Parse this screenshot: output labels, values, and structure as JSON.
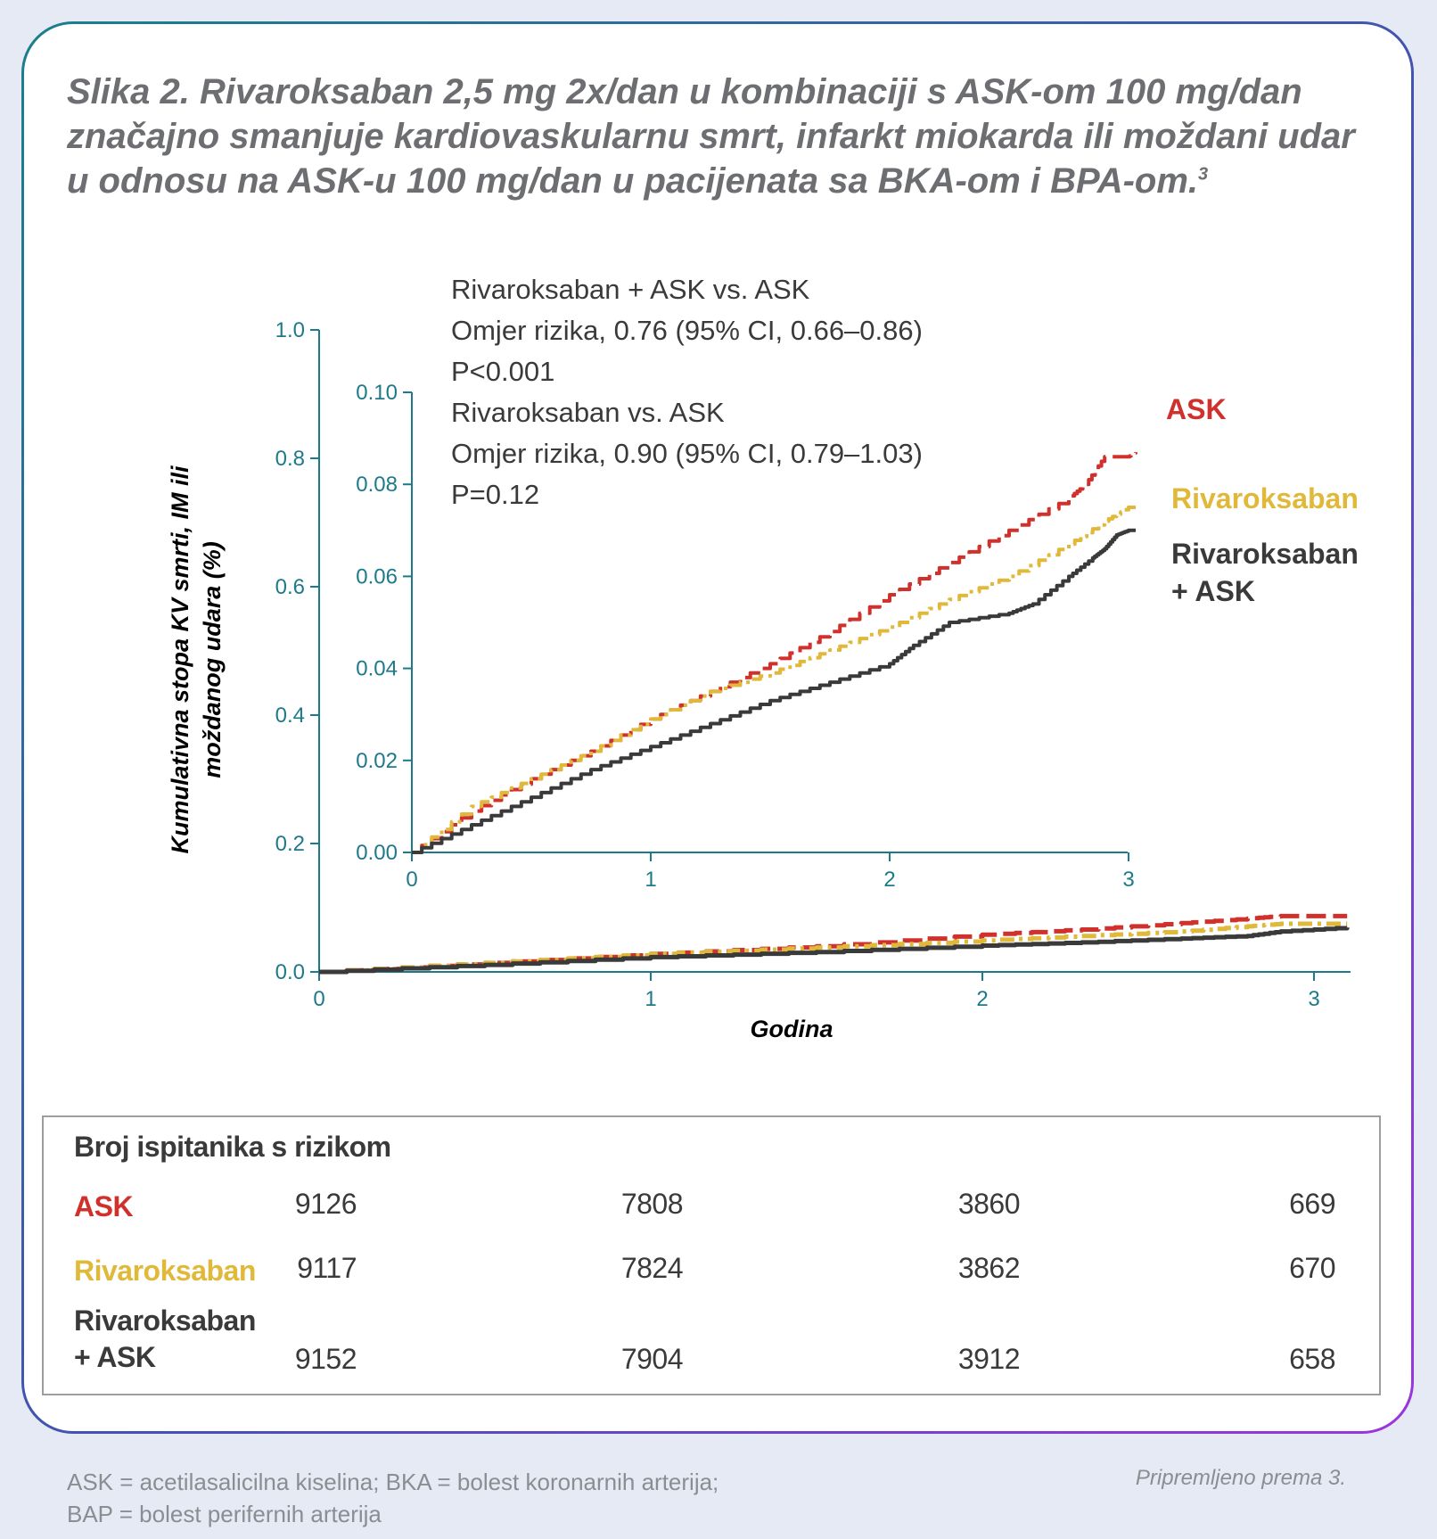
{
  "figure": {
    "title": "Slika 2. Rivaroksaban 2,5 mg 2x/dan u kombinaciji s ASK-om 100 mg/dan značajno smanjuje kardiovaskularnu smrt, infarkt miokarda ili moždani udar u odnosu na ASK-u 100 mg/dan u pacijenata sa BKA-om i BPA-om.",
    "title_superscript": "3"
  },
  "chart_data": [
    {
      "type": "line",
      "name": "main",
      "ylabel_line1": "Kumulativna stopa KV smrti, IM ili",
      "ylabel_line2": "moždanog udara (%)",
      "xlabel": "Godina",
      "xlim": [
        0,
        3.1
      ],
      "ylim": [
        0,
        1.0
      ],
      "x_ticks": [
        "0",
        "1",
        "2",
        "3"
      ],
      "y_ticks": [
        "0.0",
        "0.2",
        "0.4",
        "0.6",
        "0.8",
        "1.0"
      ],
      "series": [
        {
          "name": "ASK",
          "color": "#d0312d",
          "dash": "dashed",
          "x": [
            0,
            0.5,
            1,
            1.5,
            2,
            2.3,
            2.6,
            2.8,
            2.9,
            3.1
          ],
          "y": [
            0,
            0.014,
            0.028,
            0.04,
            0.058,
            0.066,
            0.076,
            0.083,
            0.087,
            0.087
          ]
        },
        {
          "name": "Rivaroksaban",
          "color": "#e0b93a",
          "dash": "dashdot",
          "x": [
            0,
            0.5,
            1,
            1.5,
            2,
            2.3,
            2.6,
            2.8,
            2.9,
            3.1
          ],
          "y": [
            0,
            0.014,
            0.028,
            0.038,
            0.049,
            0.056,
            0.063,
            0.071,
            0.075,
            0.075
          ]
        },
        {
          "name": "Rivaroksaban + ASK",
          "color": "#3a3a3a",
          "dash": "solid",
          "x": [
            0,
            0.5,
            1,
            1.5,
            2,
            2.3,
            2.6,
            2.8,
            2.9,
            3.1
          ],
          "y": [
            0,
            0.011,
            0.023,
            0.031,
            0.041,
            0.046,
            0.052,
            0.056,
            0.063,
            0.069
          ]
        }
      ]
    },
    {
      "type": "line",
      "name": "inset",
      "xlim": [
        0,
        3
      ],
      "ylim": [
        0,
        0.1
      ],
      "x_ticks": [
        "0",
        "1",
        "2",
        "3"
      ],
      "y_ticks": [
        "0.00",
        "0.02",
        "0.04",
        "0.06",
        "0.08",
        "0.10"
      ],
      "annotations": [
        "Rivaroksaban + ASK vs. ASK",
        "Omjer rizika, 0.76 (95% CI, 0.66–0.86)",
        "P<0.001",
        "Rivaroksaban vs. ASK",
        "Omjer rizika, 0.90 (95% CI, 0.79–1.03)",
        "P=0.12"
      ],
      "series": [
        {
          "name": "ASK",
          "color": "#d0312d",
          "dash": "dashed",
          "x": [
            0,
            0.25,
            0.5,
            0.75,
            1,
            1.25,
            1.5,
            1.75,
            2,
            2.25,
            2.5,
            2.75,
            2.82,
            2.9,
            3.0,
            3.03
          ],
          "y": [
            0,
            0.009,
            0.016,
            0.022,
            0.029,
            0.035,
            0.041,
            0.048,
            0.056,
            0.063,
            0.07,
            0.077,
            0.08,
            0.086,
            0.086,
            0.087
          ]
        },
        {
          "name": "Rivaroksaban",
          "color": "#e0b93a",
          "dash": "dashdot",
          "x": [
            0,
            0.25,
            0.5,
            0.75,
            1,
            1.25,
            1.5,
            1.75,
            2,
            2.25,
            2.5,
            2.75,
            2.9,
            3.0,
            3.03
          ],
          "y": [
            0,
            0.01,
            0.016,
            0.022,
            0.029,
            0.035,
            0.039,
            0.044,
            0.049,
            0.055,
            0.06,
            0.067,
            0.072,
            0.075,
            0.075
          ]
        },
        {
          "name": "Rivaroksaban + ASK",
          "color": "#3a3a3a",
          "dash": "solid",
          "x": [
            0,
            0.25,
            0.5,
            0.75,
            1,
            1.25,
            1.5,
            1.75,
            2,
            2.1,
            2.25,
            2.5,
            2.6,
            2.75,
            2.85,
            2.9,
            2.95,
            3.0,
            3.03
          ],
          "y": [
            0,
            0.006,
            0.012,
            0.018,
            0.023,
            0.028,
            0.033,
            0.037,
            0.041,
            0.045,
            0.05,
            0.052,
            0.054,
            0.06,
            0.064,
            0.066,
            0.069,
            0.07,
            0.07
          ]
        }
      ]
    }
  ],
  "legend": {
    "ask": "ASK",
    "rivaroksaban": "Rivaroksaban",
    "combo_line1": "Rivaroksaban",
    "combo_line2": "+ ASK"
  },
  "risk_table": {
    "heading": "Broj ispitanika s rizikom",
    "rows": [
      {
        "label_line1": "ASK",
        "label_line2": "",
        "color": "#d0312d",
        "values": [
          "9126",
          "7808",
          "3860",
          "669"
        ]
      },
      {
        "label_line1": "Rivaroksaban",
        "label_line2": "",
        "color": "#e0b93a",
        "values": [
          "9117",
          "7824",
          "3862",
          "670"
        ]
      },
      {
        "label_line1": "Rivaroksaban",
        "label_line2": "+ ASK",
        "color": "#3a3a3a",
        "values": [
          "9152",
          "7904",
          "3912",
          "658"
        ]
      }
    ]
  },
  "footnote": {
    "line1": "ASK = acetilasalicilna kiselina; BKA = bolest koronarnih arterija;",
    "line2": "BAP = bolest perifernih arterija",
    "source": "Pripremljeno prema 3."
  },
  "colors": {
    "axis": "#1e7a8a",
    "ask": "#d0312d",
    "rivaroksaban": "#e0b93a",
    "combo": "#3a3a3a",
    "text": "#3a3a3a"
  }
}
